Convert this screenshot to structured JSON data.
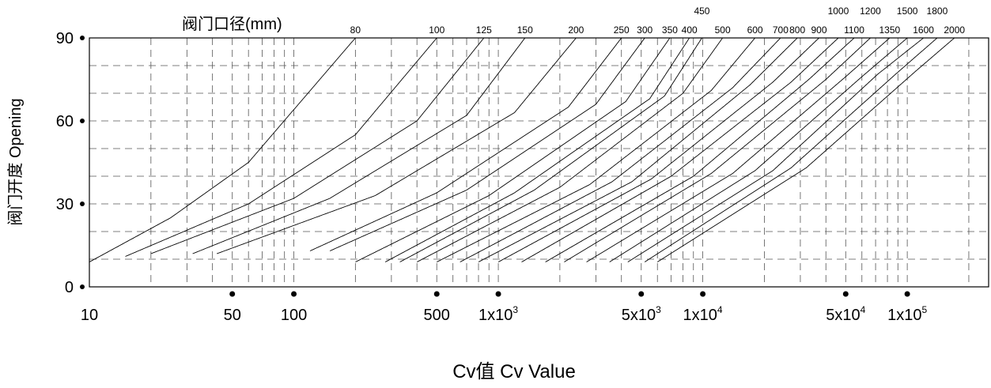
{
  "chart_data": {
    "type": "line",
    "header_label": "阀门口径(mm)",
    "xlabel": "Cv值  Cv Value",
    "ylabel": "阀门开度  Opening",
    "x_scale": "log",
    "xlim": [
      10,
      250000
    ],
    "ylim": [
      0,
      90
    ],
    "grid": true,
    "grid_style": "dashed",
    "line_color": "#000000",
    "y_ticks": [
      {
        "value": 0,
        "label": "0"
      },
      {
        "value": 30,
        "label": "30"
      },
      {
        "value": 60,
        "label": "60"
      },
      {
        "value": 90,
        "label": "90"
      }
    ],
    "x_ticks": [
      {
        "value": 10,
        "base": "10",
        "exp": ""
      },
      {
        "value": 50,
        "base": "50",
        "exp": ""
      },
      {
        "value": 100,
        "base": "100",
        "exp": ""
      },
      {
        "value": 500,
        "base": "500",
        "exp": ""
      },
      {
        "value": 1000,
        "base": "1x10",
        "exp": "3"
      },
      {
        "value": 5000,
        "base": "5x10",
        "exp": "3"
      },
      {
        "value": 10000,
        "base": "1x10",
        "exp": "4"
      },
      {
        "value": 50000,
        "base": "5x10",
        "exp": "4"
      },
      {
        "value": 100000,
        "base": "1x10",
        "exp": "5"
      }
    ],
    "x_gridlines": [
      20,
      30,
      40,
      50,
      60,
      70,
      80,
      90,
      100,
      200,
      300,
      400,
      500,
      600,
      700,
      800,
      900,
      1000,
      2000,
      3000,
      4000,
      5000,
      6000,
      7000,
      8000,
      9000,
      10000,
      20000,
      30000,
      40000,
      50000,
      60000,
      70000,
      80000,
      90000,
      100000,
      200000
    ],
    "y_gridlines": [
      10,
      20,
      30,
      40,
      50,
      60,
      70,
      80,
      90
    ],
    "series": [
      {
        "name": "80",
        "y_start": 9,
        "x": [
          10,
          25,
          60,
          200
        ],
        "y": [
          9,
          25,
          45,
          90
        ]
      },
      {
        "name": "100",
        "y_start": 11,
        "x": [
          15,
          60,
          200,
          500
        ],
        "y": [
          11,
          30,
          55,
          90
        ]
      },
      {
        "name": "125",
        "y_start": 12,
        "x": [
          20,
          100,
          400,
          850
        ],
        "y": [
          12,
          32,
          60,
          90
        ]
      },
      {
        "name": "150",
        "y_start": 12,
        "x": [
          32,
          150,
          700,
          1350
        ],
        "y": [
          12,
          32,
          62,
          90
        ]
      },
      {
        "name": "200",
        "y_start": 12,
        "x": [
          42,
          250,
          1200,
          2400
        ],
        "y": [
          12,
          33,
          63,
          90
        ]
      },
      {
        "name": "250",
        "y_start": 13,
        "x": [
          120,
          500,
          2200,
          4000
        ],
        "y": [
          13,
          34,
          65,
          90
        ]
      },
      {
        "name": "300",
        "y_start": 13,
        "x": [
          150,
          700,
          3000,
          5200
        ],
        "y": [
          13,
          35,
          66,
          90
        ]
      },
      {
        "name": "350",
        "y_start": 9,
        "x": [
          200,
          900,
          4200,
          6900
        ],
        "y": [
          9,
          33,
          67,
          90
        ]
      },
      {
        "name": "400",
        "y_start": 9,
        "x": [
          280,
          1200,
          5500,
          8600
        ],
        "y": [
          9,
          34,
          68,
          90
        ]
      },
      {
        "name": "450",
        "y_start": 9,
        "x": [
          330,
          1500,
          6500,
          9900
        ],
        "y": [
          9,
          35,
          69,
          90
        ]
      },
      {
        "name": "500",
        "y_start": 9,
        "x": [
          400,
          2000,
          8000,
          12500
        ],
        "y": [
          9,
          36,
          70,
          90
        ]
      },
      {
        "name": "600",
        "y_start": 9,
        "x": [
          500,
          2800,
          11000,
          18000
        ],
        "y": [
          9,
          37,
          71,
          90
        ]
      },
      {
        "name": "700",
        "y_start": 9,
        "x": [
          650,
          3600,
          14000,
          24000
        ],
        "y": [
          9,
          38,
          72,
          90
        ]
      },
      {
        "name": "800",
        "y_start": 9,
        "x": [
          800,
          4500,
          17000,
          29000
        ],
        "y": [
          9,
          38,
          73,
          90
        ]
      },
      {
        "name": "900",
        "y_start": 9,
        "x": [
          1000,
          5600,
          22000,
          37000
        ],
        "y": [
          9,
          39,
          74,
          90
        ]
      },
      {
        "name": "1000",
        "y_start": 9,
        "x": [
          1300,
          7000,
          27000,
          46000
        ],
        "y": [
          9,
          40,
          74,
          90
        ]
      },
      {
        "name": "1100",
        "y_start": 9,
        "x": [
          1700,
          9000,
          33000,
          55000
        ],
        "y": [
          9,
          40,
          75,
          90
        ]
      },
      {
        "name": "1200",
        "y_start": 9,
        "x": [
          2100,
          11000,
          40000,
          66000
        ],
        "y": [
          9,
          41,
          75,
          90
        ]
      },
      {
        "name": "1350",
        "y_start": 9,
        "x": [
          2700,
          14000,
          50000,
          82000
        ],
        "y": [
          9,
          41,
          76,
          90
        ]
      },
      {
        "name": "1500",
        "y_start": 9,
        "x": [
          3500,
          18000,
          60000,
          100000
        ],
        "y": [
          9,
          42,
          76,
          90
        ]
      },
      {
        "name": "1600",
        "y_start": 9,
        "x": [
          4300,
          22000,
          72000,
          120000
        ],
        "y": [
          9,
          42,
          77,
          90
        ]
      },
      {
        "name": "1800",
        "y_start": 9,
        "x": [
          5200,
          27000,
          88000,
          140000
        ],
        "y": [
          9,
          43,
          77,
          90
        ]
      },
      {
        "name": "2000",
        "y_start": 9,
        "x": [
          6000,
          32000,
          110000,
          170000
        ],
        "y": [
          9,
          43,
          78,
          90
        ]
      }
    ]
  }
}
